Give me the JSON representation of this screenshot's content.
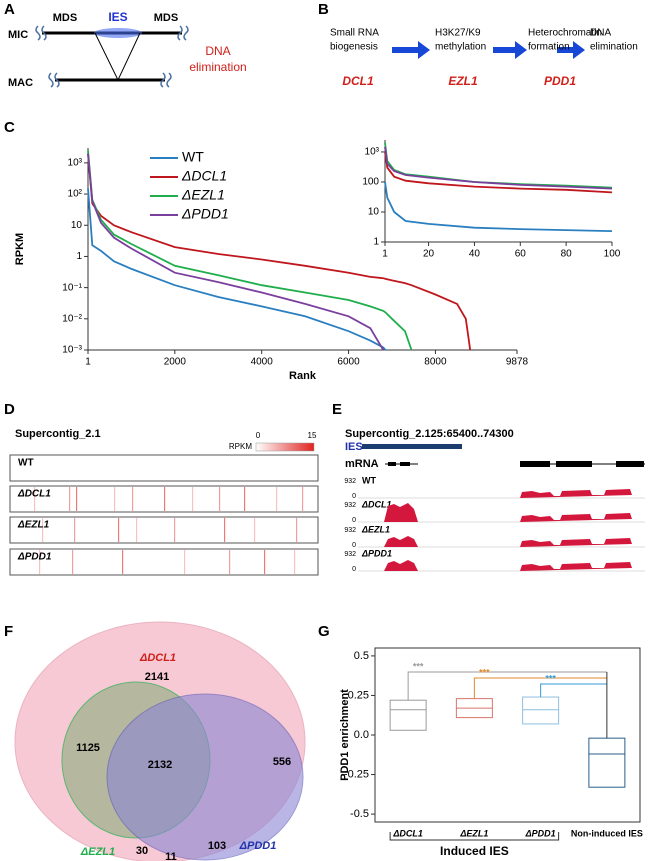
{
  "panel_labels": [
    "A",
    "B",
    "C",
    "D",
    "E",
    "F",
    "G"
  ],
  "diagram_a": {
    "mic": "MIC",
    "mac": "MAC",
    "mds_left": "MDS",
    "ies": "IES",
    "mds_right": "MDS",
    "note_lines": [
      "DNA",
      "elimination"
    ]
  },
  "pathway": {
    "steps": [
      [
        "Small RNA",
        "biogenesis"
      ],
      [
        "H3K27/K9",
        "methylation"
      ],
      [
        "Heterochromatin",
        "formation"
      ],
      [
        "DNA",
        "elimination"
      ]
    ],
    "genes": [
      "DCL1",
      "EZL1",
      "PDD1"
    ]
  },
  "chart_data": [
    {
      "type": "line",
      "xlabel": "Rank",
      "ylabel": "RPKM",
      "log_y": true,
      "x": [
        1,
        100,
        300,
        600,
        1000,
        2000,
        3000,
        4000,
        5000,
        6000,
        6500,
        6800,
        6850,
        7000,
        7300,
        7450,
        8000,
        8500,
        8700,
        8800
      ],
      "xlim": [
        1,
        9878
      ],
      "xticks": [
        1,
        2000,
        4000,
        6000,
        8000,
        9878
      ],
      "ylim": [
        0.001,
        3000
      ],
      "yticks": [
        {
          "value": 1000,
          "label": "10³"
        },
        {
          "value": 100,
          "label": "10²"
        },
        10,
        1,
        {
          "value": 0.1,
          "label": "10⁻¹"
        },
        {
          "value": 0.01,
          "label": "10⁻²"
        },
        {
          "value": 0.001,
          "label": "10⁻³"
        }
      ],
      "series": [
        {
          "name": "WT",
          "color": "#2a7fc0",
          "values": [
            150,
            2.3,
            1.5,
            0.7,
            0.4,
            0.12,
            0.05,
            0.025,
            0.012,
            0.004,
            0.002,
            0.0012,
            0.001,
            null,
            null,
            null,
            null,
            null,
            null,
            null
          ]
        },
        {
          "name": "ΔDCL1",
          "color": "#c0161d",
          "values": [
            2000,
            50,
            20,
            10,
            6,
            2,
            1.2,
            0.8,
            0.5,
            0.3,
            0.22,
            0.2,
            0.19,
            0.17,
            0.14,
            0.12,
            0.06,
            0.03,
            0.01,
            0.001
          ]
        },
        {
          "name": "ΔEZL1",
          "color": "#1fae4b",
          "values": [
            2500,
            65,
            15,
            5,
            2.5,
            0.5,
            0.25,
            0.12,
            0.07,
            0.04,
            0.025,
            0.018,
            0.016,
            0.01,
            0.004,
            0.001,
            null,
            null,
            null,
            null
          ]
        },
        {
          "name": "ΔPDD1",
          "color": "#7a3f9d",
          "values": [
            2000,
            60,
            12,
            4,
            1.8,
            0.3,
            0.15,
            0.07,
            0.03,
            0.012,
            0.005,
            0.001,
            null,
            null,
            null,
            null,
            null,
            null,
            null,
            null
          ]
        }
      ]
    },
    {
      "type": "line",
      "log_y": true,
      "x": [
        1,
        2,
        5,
        10,
        20,
        40,
        60,
        80,
        100
      ],
      "xlim": [
        1,
        100
      ],
      "xticks": [
        1,
        20,
        40,
        60,
        80,
        100
      ],
      "ylim": [
        1,
        2500
      ],
      "yticks": [
        1,
        10,
        100,
        {
          "value": 1000,
          "label": "10³"
        }
      ],
      "series": [
        {
          "color": "#2a7fc0",
          "values": [
            100,
            30,
            10,
            5,
            4,
            3,
            2.7,
            2.5,
            2.3
          ]
        },
        {
          "color": "#c0161d",
          "values": [
            1000,
            300,
            150,
            110,
            90,
            70,
            60,
            55,
            45
          ]
        },
        {
          "color": "#1fae4b",
          "values": [
            2000,
            500,
            250,
            180,
            150,
            100,
            85,
            75,
            65
          ]
        },
        {
          "color": "#7a3f9d",
          "values": [
            1500,
            400,
            230,
            170,
            140,
            100,
            80,
            70,
            60
          ]
        }
      ]
    },
    {
      "type": "box",
      "ylabel": "PDD1 enrichment",
      "group_label": "Induced IES",
      "categories": [
        "ΔDCL1",
        "ΔEZL1",
        "ΔPDD1",
        "Non-induced IES"
      ],
      "colors": [
        "#9a9a9a",
        "#d9756b",
        "#8fbfe0",
        "#2a5e8c"
      ],
      "q1": [
        0.03,
        0.11,
        0.07,
        -0.33
      ],
      "median": [
        0.16,
        0.17,
        0.16,
        -0.12
      ],
      "q3": [
        0.22,
        0.23,
        0.24,
        -0.02
      ],
      "significance": [
        "***",
        "***",
        "***"
      ],
      "significance_colors": [
        "#9a9a9a",
        "#e08a2c",
        "#3a9ad9"
      ],
      "ylim": [
        -0.55,
        0.55
      ],
      "yticks": [
        0.5,
        0.25,
        {
          "value": 0,
          "label": "0.0"
        },
        -0.25,
        -0.5
      ]
    }
  ],
  "heatmap_d": {
    "title": "Supercontig_2.1",
    "scale_label": "RPKM",
    "scale_ticks": [
      0,
      15
    ],
    "rows": [
      "WT",
      "ΔDCL1",
      "ΔEZL1",
      "ΔPDD1"
    ]
  },
  "tracks_e": {
    "title": "Supercontig_2.125:65400..74300",
    "ies_label": "IES",
    "mrna_label": "mRNA",
    "track_max": 932,
    "track_min": 0,
    "rows": [
      "WT",
      "ΔDCL1",
      "ΔEZL1",
      "ΔPDD1"
    ]
  },
  "venn_f": {
    "sets": [
      "ΔDCL1",
      "ΔEZL1",
      "ΔPDD1"
    ],
    "dcl1_only": 2141,
    "dcl1_ezl1": 1125,
    "all_three": 2132,
    "dcl1_pdd1": 556,
    "ezl1_only": 30,
    "ezl1_pdd1": 11,
    "pdd1_only": 103
  }
}
